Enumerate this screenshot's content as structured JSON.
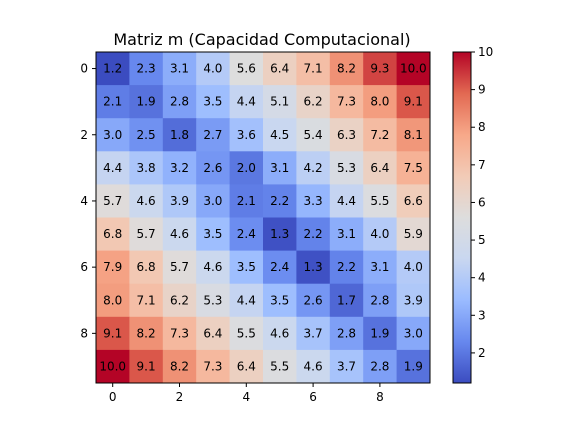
{
  "chart_data": {
    "type": "heatmap",
    "title": "Matriz m (Capacidad Computacional)",
    "colormap": "coolwarm",
    "colormap_colors": [
      "#3b4cc0",
      "#6788ee",
      "#9abbff",
      "#c9d7f0",
      "#dddddd",
      "#f2cbb7",
      "#f7a889",
      "#e26952",
      "#b40426"
    ],
    "vmin": 1.2,
    "vmax": 10.0,
    "rows": 10,
    "cols": 10,
    "x_ticks": [
      0,
      2,
      4,
      6,
      8
    ],
    "y_ticks": [
      0,
      2,
      4,
      6,
      8
    ],
    "colorbar_ticks": [
      2,
      3,
      4,
      5,
      6,
      7,
      8,
      9,
      10
    ],
    "values": [
      [
        1.2,
        2.3,
        3.1,
        4.0,
        5.6,
        6.4,
        7.1,
        8.2,
        9.3,
        10.0
      ],
      [
        2.1,
        1.9,
        2.8,
        3.5,
        4.4,
        5.1,
        6.2,
        7.3,
        8.0,
        9.1
      ],
      [
        3.0,
        2.5,
        1.8,
        2.7,
        3.6,
        4.5,
        5.4,
        6.3,
        7.2,
        8.1
      ],
      [
        4.4,
        3.8,
        3.2,
        2.6,
        2.0,
        3.1,
        4.2,
        5.3,
        6.4,
        7.5
      ],
      [
        5.7,
        4.6,
        3.9,
        3.0,
        2.1,
        2.2,
        3.3,
        4.4,
        5.5,
        6.6
      ],
      [
        6.8,
        5.7,
        4.6,
        3.5,
        2.4,
        1.3,
        2.2,
        3.1,
        4.0,
        5.9
      ],
      [
        7.9,
        6.8,
        5.7,
        4.6,
        3.5,
        2.4,
        1.3,
        2.2,
        3.1,
        4.0
      ],
      [
        8.0,
        7.1,
        6.2,
        5.3,
        4.4,
        3.5,
        2.6,
        1.7,
        2.8,
        3.9
      ],
      [
        9.1,
        8.2,
        7.3,
        6.4,
        5.5,
        4.6,
        3.7,
        2.8,
        1.9,
        3.0
      ],
      [
        10.0,
        9.1,
        8.2,
        7.3,
        6.4,
        5.5,
        4.6,
        3.7,
        2.8,
        1.9
      ]
    ]
  }
}
